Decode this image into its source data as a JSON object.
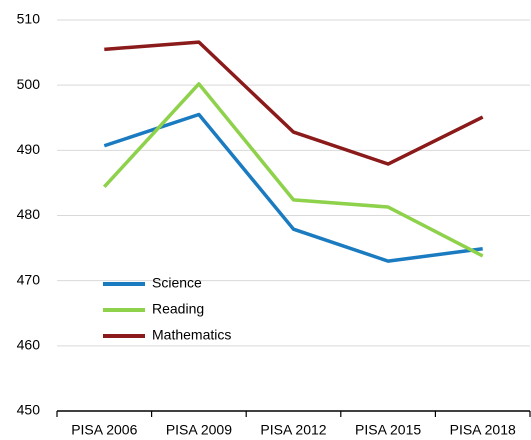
{
  "chart_data": {
    "type": "line",
    "categories": [
      "PISA 2006",
      "PISA 2009",
      "PISA 2012",
      "PISA 2015",
      "PISA 2018"
    ],
    "series": [
      {
        "name": "Science",
        "color": "#1b7bc0",
        "values": [
          490.7,
          495.5,
          477.9,
          473.0,
          474.9
        ]
      },
      {
        "name": "Reading",
        "color": "#8ed14b",
        "values": [
          484.4,
          500.2,
          482.4,
          481.3,
          473.8
        ]
      },
      {
        "name": "Mathematics",
        "color": "#8b1a1a",
        "values": [
          505.5,
          506.6,
          492.8,
          487.9,
          495.1
        ]
      }
    ],
    "ylim": [
      450,
      510
    ],
    "yticks": [
      450,
      460,
      470,
      480,
      490,
      500,
      510
    ],
    "grid": true,
    "legend": "lower left"
  }
}
